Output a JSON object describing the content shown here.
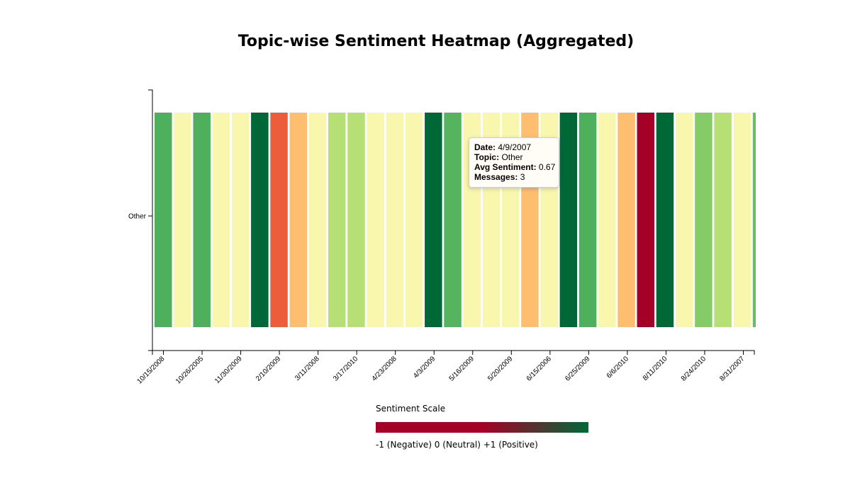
{
  "title": "Topic-wise Sentiment Heatmap (Aggregated)",
  "chart_data": {
    "type": "heatmap",
    "title": "Topic-wise Sentiment Heatmap (Aggregated)",
    "y_categories": [
      "Other"
    ],
    "x_tick_labels": [
      "10/15/2008",
      "10/26/2005",
      "11/30/2009",
      "2/10/2009",
      "3/11/2008",
      "3/17/2010",
      "4/23/2008",
      "4/3/2009",
      "5/16/2009",
      "5/20/2009",
      "6/15/2006",
      "6/25/2009",
      "6/6/2010",
      "8/11/2010",
      "8/24/2010",
      "8/31/2007"
    ],
    "cells": [
      {
        "topic": "Other",
        "sentiment": 0.7
      },
      {
        "topic": "Other",
        "sentiment": 0.05
      },
      {
        "topic": "Other",
        "sentiment": 0.7
      },
      {
        "topic": "Other",
        "sentiment": 0.05
      },
      {
        "topic": "Other",
        "sentiment": 0.05
      },
      {
        "topic": "Other",
        "sentiment": 1.0
      },
      {
        "topic": "Other",
        "sentiment": -0.7
      },
      {
        "topic": "Other",
        "sentiment": -0.35
      },
      {
        "topic": "Other",
        "sentiment": 0.05
      },
      {
        "topic": "Other",
        "sentiment": 0.35
      },
      {
        "topic": "Other",
        "sentiment": 0.35
      },
      {
        "topic": "Other",
        "sentiment": 0.05
      },
      {
        "topic": "Other",
        "sentiment": 0.05
      },
      {
        "topic": "Other",
        "sentiment": 0.05
      },
      {
        "topic": "Other",
        "sentiment": 1.0
      },
      {
        "topic": "Other",
        "sentiment": 0.67
      },
      {
        "topic": "Other",
        "sentiment": 0.05
      },
      {
        "topic": "Other",
        "sentiment": 0.05
      },
      {
        "topic": "Other",
        "sentiment": 0.05
      },
      {
        "topic": "Other",
        "sentiment": -0.35
      },
      {
        "topic": "Other",
        "sentiment": 0.05
      },
      {
        "topic": "Other",
        "sentiment": 1.0
      },
      {
        "topic": "Other",
        "sentiment": 0.7
      },
      {
        "topic": "Other",
        "sentiment": 0.05
      },
      {
        "topic": "Other",
        "sentiment": -0.35
      },
      {
        "topic": "Other",
        "sentiment": -1.0
      },
      {
        "topic": "Other",
        "sentiment": 1.0
      },
      {
        "topic": "Other",
        "sentiment": 0.05
      },
      {
        "topic": "Other",
        "sentiment": 0.5
      },
      {
        "topic": "Other",
        "sentiment": 0.35
      },
      {
        "topic": "Other",
        "sentiment": 0.05
      },
      {
        "topic": "Other",
        "sentiment": 0.6
      }
    ],
    "color_scale": {
      "min": -1,
      "mid": 0,
      "max": 1
    }
  },
  "tooltip": {
    "date_label": "Date:",
    "date_value": "4/9/2007",
    "topic_label": "Topic:",
    "topic_value": "Other",
    "sentiment_label": "Avg Sentiment:",
    "sentiment_value": "0.67",
    "messages_label": "Messages:",
    "messages_value": "3"
  },
  "legend": {
    "title": "Sentiment Scale",
    "caption": "-1 (Negative) 0 (Neutral) +1 (Positive)",
    "color_negative": "#a50026",
    "color_positive": "#006837"
  }
}
